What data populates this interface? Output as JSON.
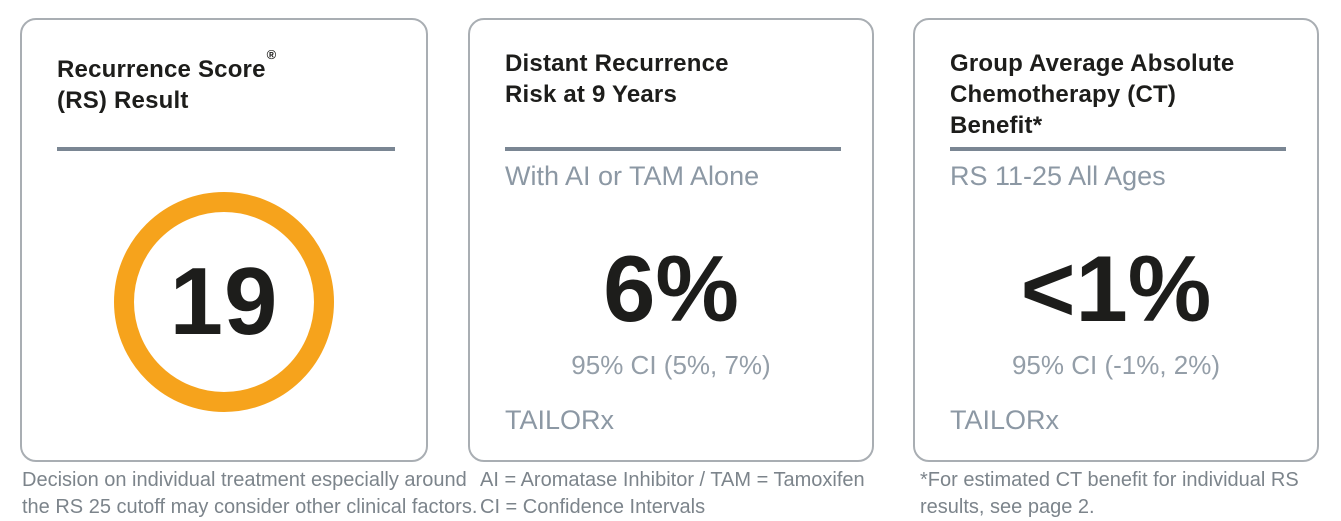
{
  "accent": {
    "orange": "#F6A31C",
    "slate": "#8C98A4",
    "divider": "#7A8693",
    "near_black": "#1D1D1B",
    "footnote_gray": "#7C848B",
    "card_border": "#A9AEB3",
    "ci_gray": "#949EA8"
  },
  "cards": [
    {
      "id": "recurrence-score",
      "title_line1": "Recurrence Score",
      "title_sup": "®",
      "title_line2": "(RS) Result",
      "score_value": "19",
      "footnote_line1": "Decision on individual treatment especially around",
      "footnote_line2": "the RS 25 cutoff may consider other clinical factors."
    },
    {
      "id": "distant-recurrence",
      "title_line1": "Distant Recurrence",
      "title_line2": "Risk at 9 Years",
      "subtitle": "With AI or TAM Alone",
      "value": "6%",
      "ci": "95% CI (5%, 7%)",
      "study": "TAILORx",
      "footnote_line1": "AI = Aromatase Inhibitor / TAM = Tamoxifen",
      "footnote_line2": "CI = Confidence Intervals"
    },
    {
      "id": "ct-benefit",
      "title_line1": "Group Average Absolute",
      "title_line2": "Chemotherapy (CT)",
      "title_line3": "Benefit*",
      "subtitle": "RS 11-25 All Ages",
      "value": "<1%",
      "ci": "95% CI (-1%, 2%)",
      "study": "TAILORx",
      "footnote_line1": "*For estimated CT benefit for individual RS",
      "footnote_line2": "results, see page 2."
    }
  ]
}
